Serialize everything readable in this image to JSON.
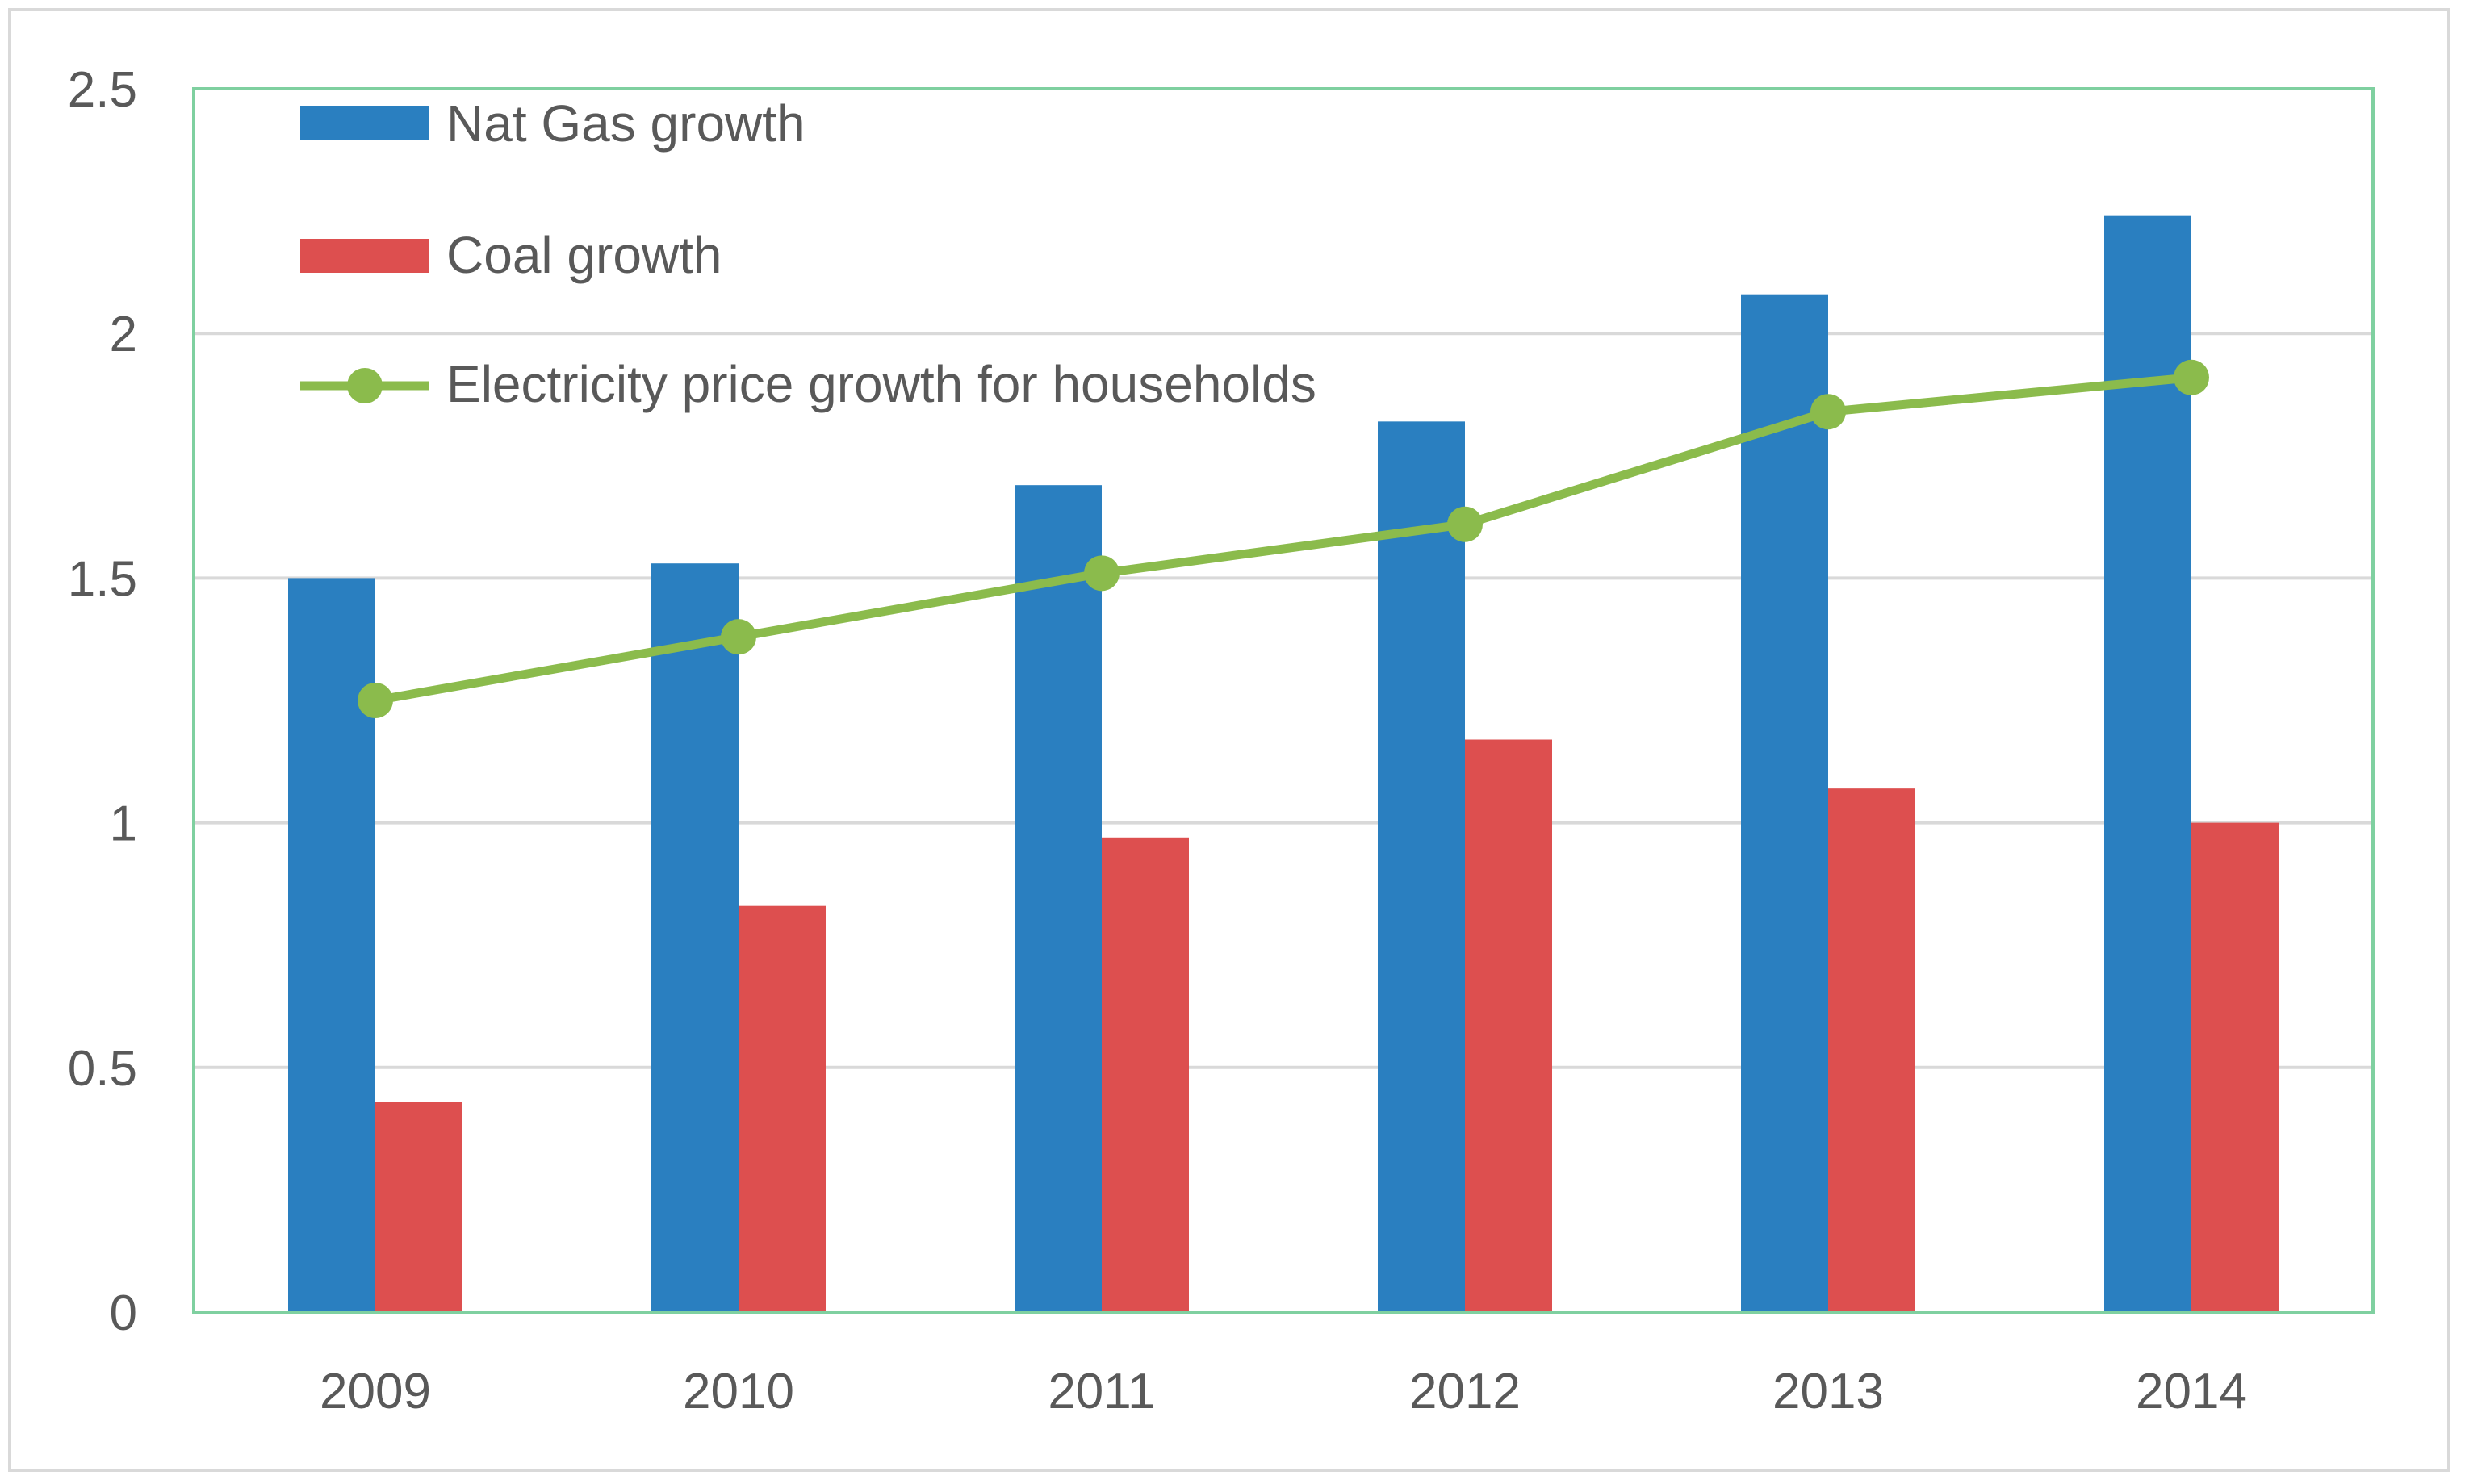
{
  "chart_data": {
    "type": "bar",
    "title": "",
    "xlabel": "",
    "ylabel": "",
    "categories": [
      "2009",
      "2010",
      "2011",
      "2012",
      "2013",
      "2014"
    ],
    "ylim": [
      0,
      2.5
    ],
    "yticks": [
      0,
      0.5,
      1,
      1.5,
      2,
      2.5
    ],
    "ytick_labels": [
      "0",
      "0.5",
      "1",
      "1.5",
      "2",
      "2.5"
    ],
    "grid": true,
    "legend_position": "top-left",
    "series": [
      {
        "name": "Nat Gas growth",
        "kind": "bar",
        "color": "#2a7fc0",
        "values": [
          1.5,
          1.53,
          1.69,
          1.82,
          2.08,
          2.24
        ]
      },
      {
        "name": "Coal growth",
        "kind": "bar",
        "color": "#dd4f4f",
        "values": [
          0.43,
          0.83,
          0.97,
          1.17,
          1.07,
          1.0
        ]
      },
      {
        "name": "Electricity price growth for households",
        "kind": "line",
        "color": "#8bbb4c",
        "values": [
          1.25,
          1.38,
          1.51,
          1.61,
          1.84,
          1.91
        ]
      }
    ],
    "plot_border_color": "#7fd0a0",
    "grid_color": "#d9d9d9"
  }
}
